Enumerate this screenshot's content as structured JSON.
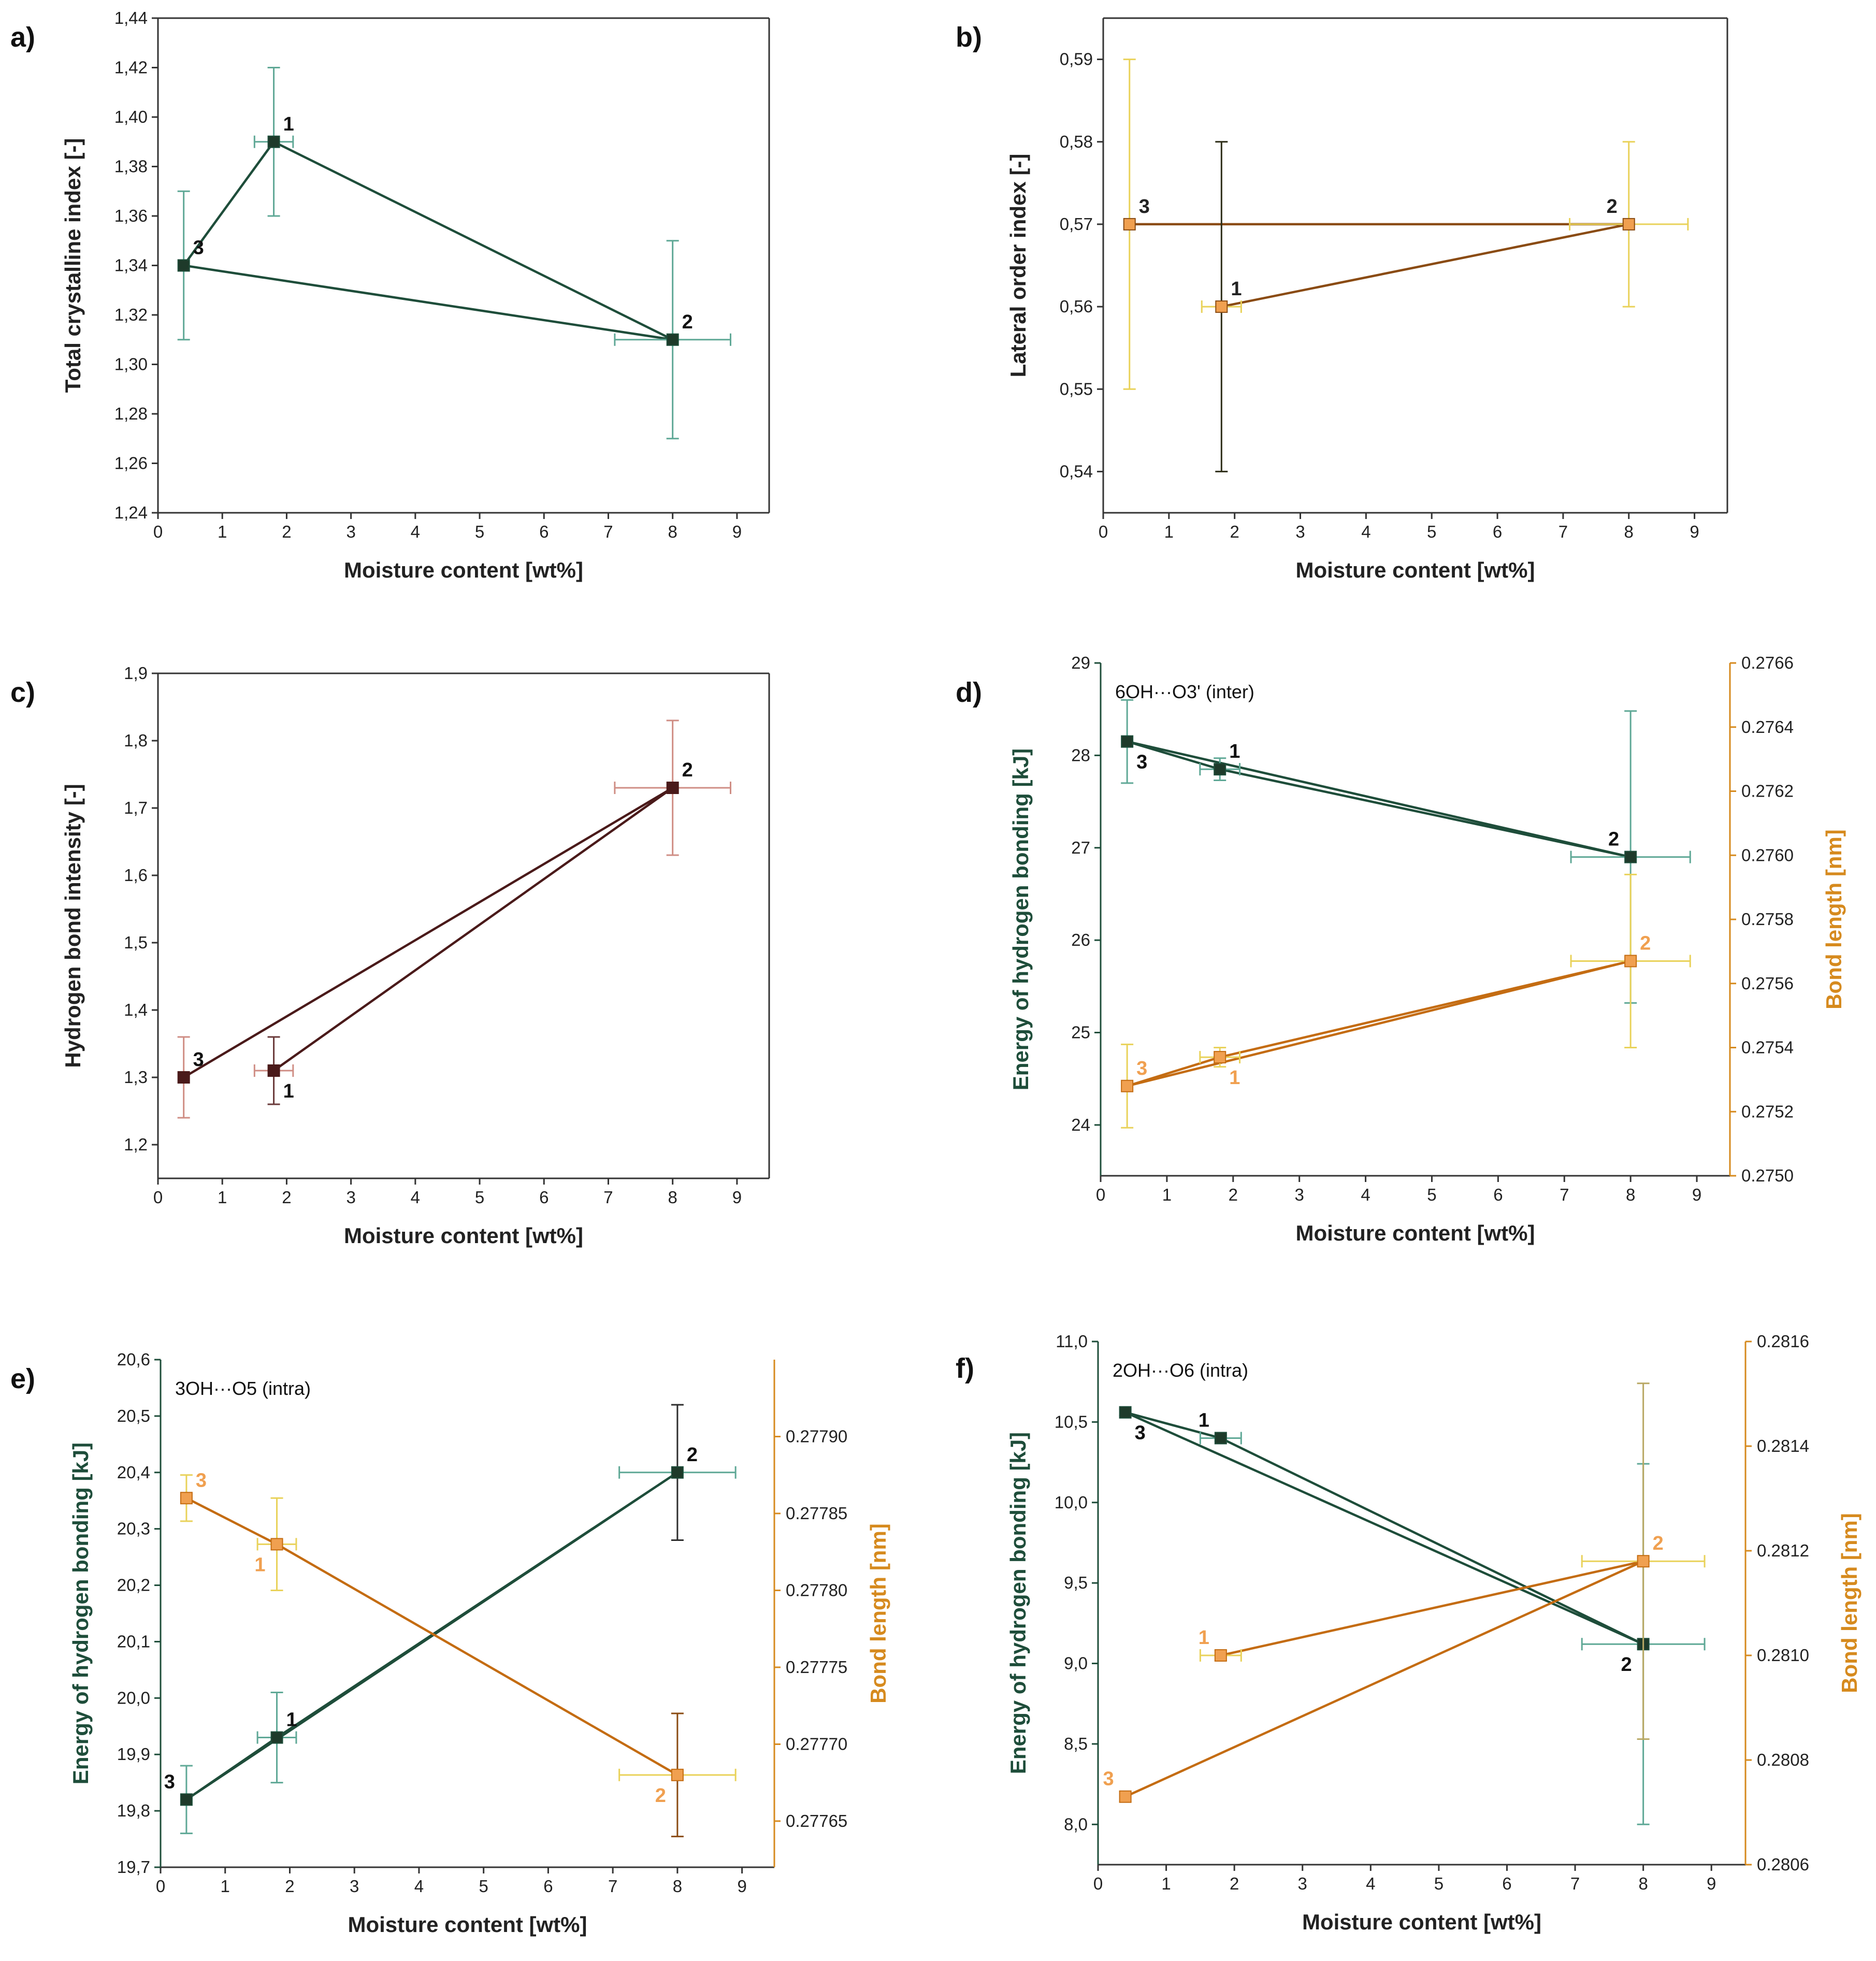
{
  "figure_title": "",
  "colors": {
    "green": "#1e4d3a",
    "green_err": "#5fa896",
    "orange": "#c46c12",
    "orange_point": "#f0a050",
    "orange_err": "#e9d25a",
    "brown": "#4a1a1a",
    "brown_err": "#cf8d84",
    "dark": "#2d2d17",
    "axis": "#333333",
    "orange_axis": "#d68a1e",
    "green_axis": "#1e4d3a"
  },
  "chart_data": [
    {
      "panel": "a)",
      "type": "scatter",
      "xlabel": "Moisture content [wt%]",
      "ylabel": "Total crystalline index [-]",
      "xlim": [
        0,
        9.5
      ],
      "xticks": [
        "0",
        "1",
        "2",
        "3",
        "4",
        "5",
        "6",
        "7",
        "8",
        "9"
      ],
      "ylim": [
        1.24,
        1.44
      ],
      "yticks": [
        "1.24",
        "1.26",
        "1.28",
        "1.30",
        "1.32",
        "1.34",
        "1.36",
        "1.38",
        "1.40",
        "1.42",
        "1.44"
      ],
      "series": [
        {
          "name": "Total crystalline index",
          "axis": "left",
          "line_color": "#1e4d3a",
          "point_color": "#1e3a2a",
          "err_color": "#5fa896",
          "order": [
            2,
            0,
            1,
            2
          ],
          "points": [
            {
              "label": "1",
              "x": 1.8,
              "y": 1.39,
              "yerr": 0.03,
              "xerr": 0.3,
              "label_pos": "tr"
            },
            {
              "label": "2",
              "x": 8.0,
              "y": 1.31,
              "yerr": 0.04,
              "xerr": 0.9,
              "label_pos": "tr"
            },
            {
              "label": "3",
              "x": 0.4,
              "y": 1.34,
              "yerr": 0.03,
              "xerr": 0,
              "label_pos": "tr"
            }
          ]
        }
      ]
    },
    {
      "panel": "b)",
      "type": "scatter",
      "xlabel": "Moisture content [wt%]",
      "ylabel": "Lateral order index [-]",
      "xlim": [
        0,
        9.5
      ],
      "xticks": [
        "0",
        "1",
        "2",
        "3",
        "4",
        "5",
        "6",
        "7",
        "8",
        "9"
      ],
      "ylim": [
        0.535,
        0.595
      ],
      "yticks": [
        "0.54",
        "0.55",
        "0.56",
        "0.57",
        "0.58",
        "0.59"
      ],
      "series": [
        {
          "name": "Lateral order index",
          "axis": "left",
          "line_color": "#8a4b12",
          "point_color": "#f0a050",
          "err_color": "#e9d25a",
          "order": [
            2,
            1,
            0
          ],
          "points": [
            {
              "label": "1",
              "x": 1.8,
              "y": 0.56,
              "yerr": 0.02,
              "xerr": 0.3,
              "err_override": "#2d2d17",
              "label_pos": "tr"
            },
            {
              "label": "2",
              "x": 8.0,
              "y": 0.57,
              "yerr": 0.01,
              "xerr": 0.9,
              "label_pos": "tl"
            },
            {
              "label": "3",
              "x": 0.4,
              "y": 0.57,
              "yerr": 0.02,
              "xerr": 0,
              "label_pos": "tr"
            }
          ]
        }
      ]
    },
    {
      "panel": "c)",
      "type": "scatter",
      "xlabel": "Moisture content [wt%]",
      "ylabel": "Hydrogen bond intensity [-]",
      "xlim": [
        0,
        9.5
      ],
      "xticks": [
        "0",
        "1",
        "2",
        "3",
        "4",
        "5",
        "6",
        "7",
        "8",
        "9"
      ],
      "ylim": [
        1.15,
        1.9
      ],
      "yticks": [
        "1.2",
        "1.3",
        "1.4",
        "1.5",
        "1.6",
        "1.7",
        "1.8",
        "1.9"
      ],
      "series": [
        {
          "name": "Hydrogen bond intensity",
          "axis": "left",
          "line_color": "#4a1a1a",
          "point_color": "#4a1a1a",
          "err_color": "#cf8d84",
          "order": [
            0,
            1,
            2
          ],
          "points": [
            {
              "label": "1",
              "x": 1.8,
              "y": 1.31,
              "yerr": 0.05,
              "xerr": 0.3,
              "err_override": "#6a3a3a",
              "label_pos": "br"
            },
            {
              "label": "2",
              "x": 8.0,
              "y": 1.73,
              "yerr": 0.1,
              "xerr": 0.9,
              "label_pos": "tr"
            },
            {
              "label": "3",
              "x": 0.4,
              "y": 1.3,
              "yerr": 0.06,
              "xerr": 0,
              "label_pos": "tr"
            }
          ]
        }
      ]
    },
    {
      "panel": "d)",
      "type": "scatter",
      "annotation": "6OH···O3' (inter)",
      "xlabel": "Moisture content [wt%]",
      "ylabel": "Energy of hydrogen bonding [kJ]",
      "y2label": "Bond length [nm]",
      "xlim": [
        0,
        9.5
      ],
      "xticks": [
        "0",
        "1",
        "2",
        "3",
        "4",
        "5",
        "6",
        "7",
        "8",
        "9"
      ],
      "ylim": [
        23.45,
        29
      ],
      "yticks": [
        "24",
        "25",
        "26",
        "27",
        "28",
        "29"
      ],
      "y2lim": [
        0.275,
        0.2766
      ],
      "y2ticks": [
        "0.2750",
        "0.2752",
        "0.2754",
        "0.2756",
        "0.2758",
        "0.2760",
        "0.2762",
        "0.2764",
        "0.2766"
      ],
      "series": [
        {
          "name": "Energy of hydrogen bonding",
          "axis": "left",
          "line_color": "#1e4d3a",
          "point_color": "#1e3a2a",
          "err_color": "#5fa896",
          "order": [
            0,
            1,
            2,
            0
          ],
          "points": [
            {
              "label": "1",
              "x": 1.8,
              "y": 27.85,
              "yerr": 0.12,
              "xerr": 0.3,
              "label_pos": "tr"
            },
            {
              "label": "2",
              "x": 8.0,
              "y": 26.9,
              "yerr": 1.58,
              "xerr": 0.9,
              "label_pos": "tl"
            },
            {
              "label": "3",
              "x": 0.4,
              "y": 28.15,
              "yerr": 0.45,
              "xerr": 0,
              "label_pos": "br"
            }
          ]
        },
        {
          "name": "Bond length",
          "axis": "right",
          "line_color": "#c46c12",
          "point_color": "#f0a050",
          "err_color": "#e9d25a",
          "order": [
            0,
            1,
            2,
            0
          ],
          "points": [
            {
              "label": "1",
              "x": 1.8,
              "y": 0.27537,
              "yerr": 3e-05,
              "xerr": 0.3,
              "label_pos": "br"
            },
            {
              "label": "2",
              "x": 8.0,
              "y": 0.27567,
              "yerr": 0.00027,
              "xerr": 0.9,
              "label_pos": "tr"
            },
            {
              "label": "3",
              "x": 0.4,
              "y": 0.27528,
              "yerr": 0.00013,
              "xerr": 0,
              "label_pos": "tr"
            }
          ]
        }
      ]
    },
    {
      "panel": "e)",
      "type": "scatter",
      "annotation": "3OH···O5 (intra)",
      "xlabel": "Moisture content [wt%]",
      "ylabel": "Energy of hydrogen bonding [kJ]",
      "y2label": "Bond length [nm]",
      "xlim": [
        0,
        9.5
      ],
      "xticks": [
        "0",
        "1",
        "2",
        "3",
        "4",
        "5",
        "6",
        "7",
        "8",
        "9"
      ],
      "ylim": [
        19.7,
        20.6
      ],
      "yticks": [
        "19.7",
        "19.8",
        "19.9",
        "20.0",
        "20.1",
        "20.2",
        "20.3",
        "20.4",
        "20.5",
        "20.6"
      ],
      "y2lim": [
        0.27762,
        0.27795
      ],
      "y2ticks": [
        "0.27765",
        "0.27770",
        "0.27775",
        "0.27780",
        "0.27785",
        "0.27790"
      ],
      "series": [
        {
          "name": "Energy of hydrogen bonding",
          "axis": "left",
          "line_color": "#1e4d3a",
          "point_color": "#1e3a2a",
          "err_color": "#5fa896",
          "order": [
            2,
            0,
            1,
            2
          ],
          "points": [
            {
              "label": "1",
              "x": 1.8,
              "y": 19.93,
              "yerr": 0.08,
              "xerr": 0.3,
              "label_pos": "tr"
            },
            {
              "label": "2",
              "x": 8.0,
              "y": 20.4,
              "yerr": 0.12,
              "xerr": 0.9,
              "err_override": "#2d2d2d",
              "label_pos": "tr"
            },
            {
              "label": "3",
              "x": 0.4,
              "y": 19.82,
              "yerr": 0.06,
              "xerr": 0,
              "label_pos": "tl"
            }
          ]
        },
        {
          "name": "Bond length",
          "axis": "right",
          "line_color": "#c46c12",
          "point_color": "#f0a050",
          "err_color": "#e9d25a",
          "order": [
            2,
            0,
            1
          ],
          "points": [
            {
              "label": "1",
              "x": 1.8,
              "y": 0.27783,
              "yerr": 3e-05,
              "xerr": 0.3,
              "label_pos": "bl"
            },
            {
              "label": "2",
              "x": 8.0,
              "y": 0.27768,
              "yerr": 4e-05,
              "xerr": 0.9,
              "err_override": "#8a4b12",
              "label_pos": "bl"
            },
            {
              "label": "3",
              "x": 0.4,
              "y": 0.27786,
              "yerr": 1.5e-05,
              "xerr": 0,
              "label_pos": "tr"
            }
          ]
        }
      ]
    },
    {
      "panel": "f)",
      "type": "scatter",
      "annotation": "2OH···O6 (intra)",
      "xlabel": "Moisture content [wt%]",
      "ylabel": "Energy of hydrogen bonding [kJ]",
      "y2label": "Bond length [nm]",
      "xlim": [
        0,
        9.5
      ],
      "xticks": [
        "0",
        "1",
        "2",
        "3",
        "4",
        "5",
        "6",
        "7",
        "8",
        "9"
      ],
      "ylim": [
        7.75,
        11
      ],
      "yticks": [
        "8.0",
        "8.5",
        "9.0",
        "9.5",
        "10.0",
        "10.5",
        "11.0"
      ],
      "y2lim": [
        0.2806,
        0.2816
      ],
      "y2ticks": [
        "0.2806",
        "0.2808",
        "0.2810",
        "0.2812",
        "0.2814",
        "0.2816"
      ],
      "series": [
        {
          "name": "Energy of hydrogen bonding",
          "axis": "left",
          "line_color": "#1e4d3a",
          "point_color": "#1e3a2a",
          "err_color": "#5fa896",
          "order": [
            0,
            1,
            2,
            0
          ],
          "points": [
            {
              "label": "1",
              "x": 1.8,
              "y": 10.4,
              "yerr": 0.02,
              "xerr": 0.3,
              "label_pos": "tl"
            },
            {
              "label": "2",
              "x": 8.0,
              "y": 9.12,
              "yerr": 1.12,
              "xerr": 0.9,
              "label_pos": "bl"
            },
            {
              "label": "3",
              "x": 0.4,
              "y": 10.56,
              "yerr": 0.02,
              "xerr": 0,
              "label_pos": "br"
            }
          ]
        },
        {
          "name": "Bond length",
          "axis": "right",
          "line_color": "#c46c12",
          "point_color": "#f0a050",
          "err_color": "#e9d25a",
          "order": [
            0,
            1,
            2
          ],
          "points": [
            {
              "label": "1",
              "x": 1.8,
              "y": 0.281,
              "yerr": 1e-05,
              "xerr": 0.3,
              "label_pos": "tl"
            },
            {
              "label": "2",
              "x": 8.0,
              "y": 0.28118,
              "yerr": 0.00034,
              "xerr": 0.9,
              "err_override": "#b9a864",
              "label_pos": "tr"
            },
            {
              "label": "3",
              "x": 0.4,
              "y": 0.28073,
              "yerr": 1e-05,
              "xerr": 0,
              "label_pos": "tl"
            }
          ]
        }
      ]
    }
  ]
}
